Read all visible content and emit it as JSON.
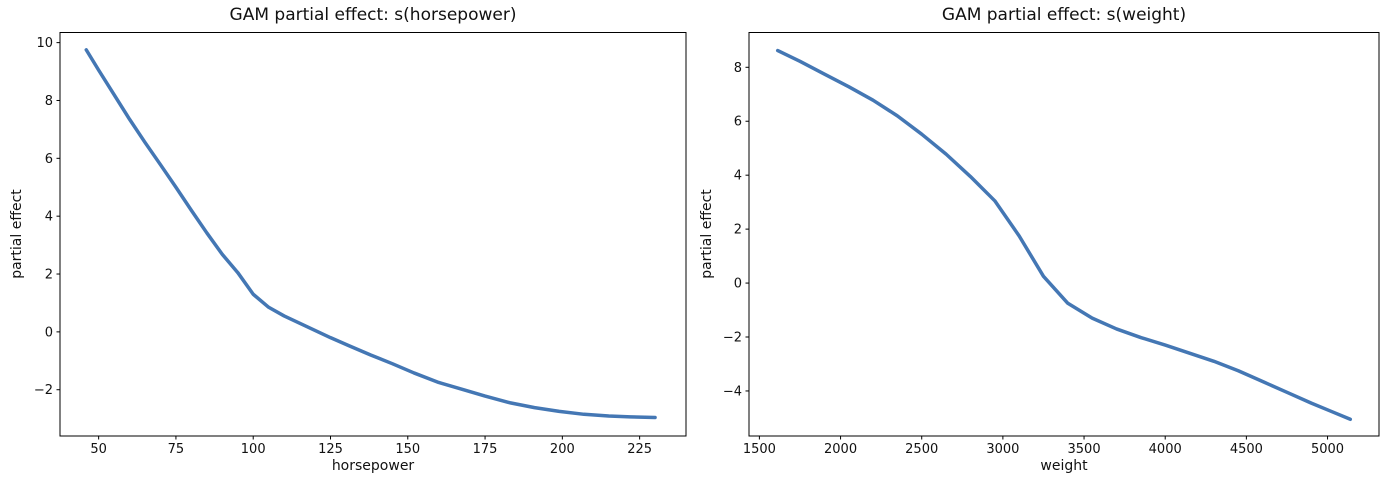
{
  "figure": {
    "background": "#ffffff",
    "text_color": "#111111",
    "spine_color": "#000000"
  },
  "chart_data": [
    {
      "type": "line",
      "title": "GAM partial effect: s(horsepower)",
      "xlabel": "horsepower",
      "ylabel": "partial effect",
      "x": [
        46,
        50,
        55,
        60,
        65,
        70,
        75,
        80,
        85,
        90,
        95,
        100,
        105,
        110,
        115,
        120,
        125,
        131,
        138,
        145,
        152,
        160,
        168,
        175,
        183,
        191,
        199,
        207,
        215,
        222,
        230
      ],
      "y": [
        9.75,
        9.05,
        8.2,
        7.35,
        6.55,
        5.78,
        5.0,
        4.2,
        3.42,
        2.68,
        2.05,
        1.3,
        0.85,
        0.55,
        0.3,
        0.05,
        -0.2,
        -0.48,
        -0.8,
        -1.1,
        -1.42,
        -1.75,
        -2.0,
        -2.22,
        -2.45,
        -2.62,
        -2.75,
        -2.85,
        -2.91,
        -2.94,
        -2.96
      ],
      "xlim": [
        37.5,
        240
      ],
      "ylim": [
        -3.6,
        10.35
      ],
      "xticks": [
        50,
        75,
        100,
        125,
        150,
        175,
        200,
        225
      ],
      "yticks": [
        -2,
        0,
        2,
        4,
        6,
        8,
        10
      ],
      "grid": false,
      "legend": null,
      "line_color": "#4477b4",
      "line_width": 3.5
    },
    {
      "type": "line",
      "title": "GAM partial effect: s(weight)",
      "xlabel": "weight",
      "ylabel": "partial effect",
      "x": [
        1613,
        1750,
        1900,
        2050,
        2200,
        2350,
        2500,
        2650,
        2800,
        2950,
        3100,
        3250,
        3400,
        3550,
        3700,
        3850,
        4000,
        4150,
        4300,
        4450,
        4600,
        4750,
        4900,
        5020,
        5140
      ],
      "y": [
        8.62,
        8.22,
        7.75,
        7.28,
        6.78,
        6.2,
        5.52,
        4.78,
        3.95,
        3.05,
        1.75,
        0.25,
        -0.75,
        -1.3,
        -1.7,
        -2.02,
        -2.3,
        -2.6,
        -2.9,
        -3.25,
        -3.65,
        -4.05,
        -4.45,
        -4.75,
        -5.05
      ],
      "xlim": [
        1436,
        5317
      ],
      "ylim": [
        -5.67,
        9.29
      ],
      "xticks": [
        1500,
        2000,
        2500,
        3000,
        3500,
        4000,
        4500,
        5000
      ],
      "yticks": [
        -4,
        -2,
        0,
        2,
        4,
        6,
        8
      ],
      "grid": false,
      "legend": null,
      "line_color": "#4477b4",
      "line_width": 3.5
    }
  ]
}
